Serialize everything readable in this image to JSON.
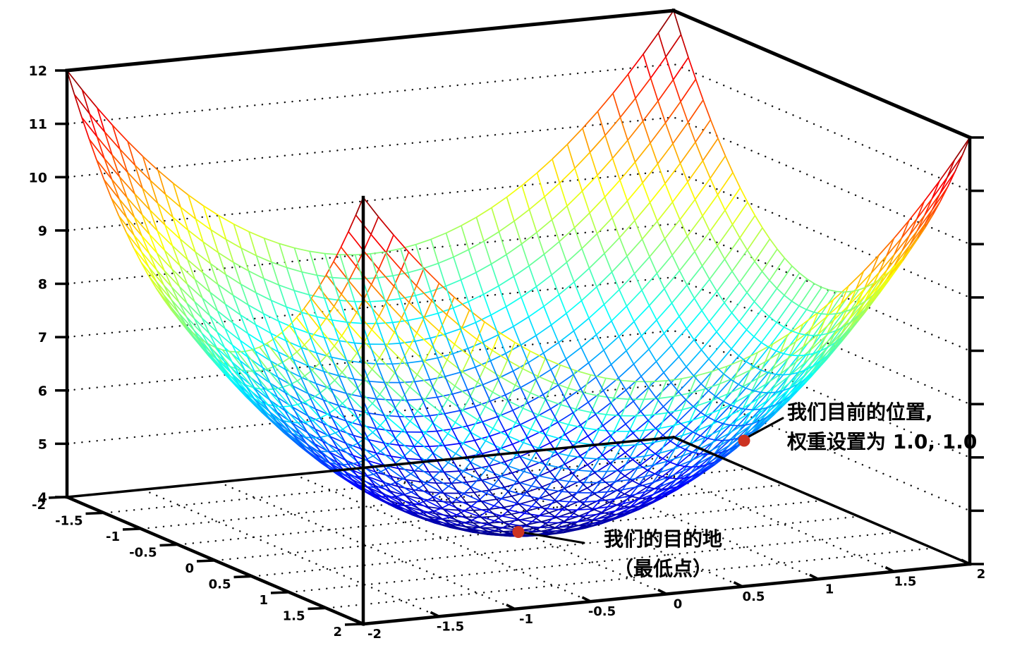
{
  "chart_data": {
    "type": "surface3d_wireframe",
    "title": "",
    "surface": {
      "formula": "z = x^2 + y^2 + 4",
      "x2_coef": 1,
      "y2_coef": 1,
      "constant": 4
    },
    "x_range": [
      -2,
      2
    ],
    "y_range": [
      -2,
      2
    ],
    "z_range": [
      4,
      12
    ],
    "mesh_divisions": 40,
    "colormap": "jet",
    "grid_style": "dotted",
    "floor_grid_step": 0.5,
    "wall_gridline_z_levels": [
      5,
      6,
      7,
      8,
      9,
      10,
      11
    ],
    "x_ticks": {
      "values": [
        -2,
        -1.5,
        -1,
        -0.5,
        0,
        0.5,
        1,
        1.5,
        2
      ],
      "labels": [
        "-2",
        "-1.5",
        "-1",
        "-0.5",
        "0",
        "0.5",
        "1",
        "1.5",
        "2"
      ]
    },
    "y_ticks": {
      "values": [
        -2,
        -1.5,
        -1,
        -0.5,
        0,
        0.5,
        1,
        1.5,
        2
      ],
      "labels": [
        "-2",
        "-1.5",
        "-1",
        "-0.5",
        "0",
        "0.5",
        "1",
        "1.5",
        "2"
      ]
    },
    "z_ticks": {
      "values": [
        4,
        5,
        6,
        7,
        8,
        9,
        10,
        11,
        12
      ],
      "labels": [
        "4",
        "5",
        "6",
        "7",
        "8",
        "9",
        "10",
        "11",
        "12"
      ]
    },
    "axis_color": "#000000",
    "background_color": "#ffffff",
    "annotations": [
      {
        "id": "current-position",
        "line1": "我们目前的位置,",
        "line2": "权重设置为 1.0, 1.0",
        "x": 1,
        "y": 1,
        "z": 6,
        "dot_color": "#cc3322"
      },
      {
        "id": "destination",
        "line1": "我们的目的地",
        "line2": "（最低点）",
        "x": 0,
        "y": 0,
        "z": 4,
        "dot_color": "#cc3322"
      }
    ]
  }
}
